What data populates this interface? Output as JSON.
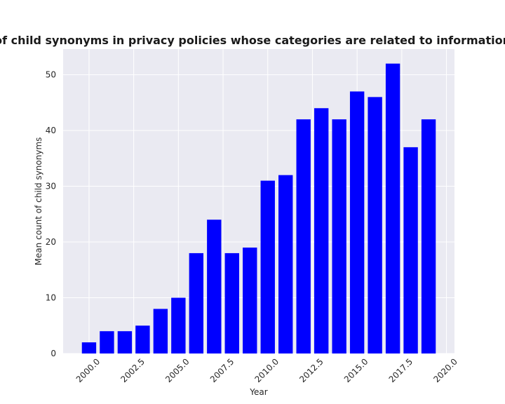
{
  "chart_data": {
    "type": "bar",
    "title": "Mean count of child synonyms in privacy policies whose categories are related to informationtech;shopping",
    "xlabel": "Year",
    "ylabel": "Mean count of child synonyms",
    "x": [
      2000,
      2001,
      2002,
      2003,
      2004,
      2005,
      2006,
      2007,
      2008,
      2009,
      2010,
      2011,
      2012,
      2013,
      2014,
      2015,
      2016,
      2017,
      2018,
      2019
    ],
    "values": [
      2,
      4,
      4,
      5,
      8,
      10,
      18,
      24,
      18,
      19,
      31,
      32,
      42,
      44,
      42,
      47,
      46,
      52,
      37,
      42
    ],
    "xlim": [
      1998.55,
      2020.45
    ],
    "ylim": [
      0,
      54.6
    ],
    "xticks": [
      "2000.0",
      "2002.5",
      "2005.0",
      "2007.5",
      "2010.0",
      "2012.5",
      "2015.0",
      "2017.5",
      "2020.0"
    ],
    "xtick_values": [
      2000,
      2002.5,
      2005,
      2007.5,
      2010,
      2012.5,
      2015,
      2017.5,
      2020
    ],
    "yticks": [
      "0",
      "10",
      "20",
      "30",
      "40",
      "50"
    ],
    "ytick_values": [
      0,
      10,
      20,
      30,
      40,
      50
    ],
    "bar_color": "#0000ff",
    "background_color": "#eaeaf2",
    "grid": true
  }
}
